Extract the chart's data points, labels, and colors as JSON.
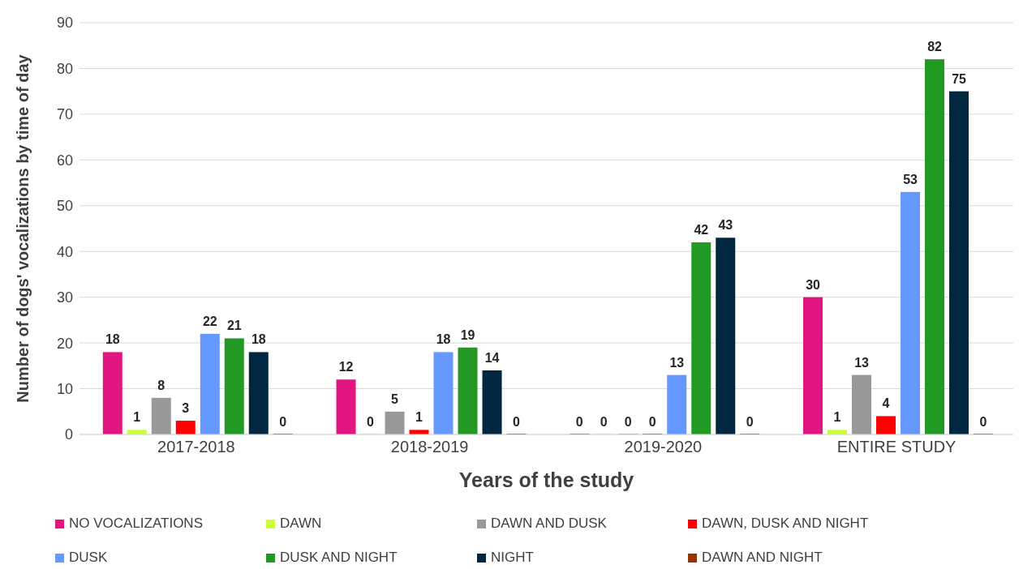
{
  "chart_data": {
    "type": "bar",
    "xlabel": "Years of the study",
    "ylabel": "Number of dogs' vocalizations by time of day",
    "categories": [
      "2017-2018",
      "2018-2019",
      "2019-2020",
      "ENTIRE STUDY"
    ],
    "series": [
      {
        "name": "NO VOCALIZATIONS",
        "color": "#e0157f",
        "values": [
          18,
          12,
          0,
          30
        ]
      },
      {
        "name": "DAWN",
        "color": "#ccff33",
        "values": [
          1,
          0,
          0,
          1
        ]
      },
      {
        "name": "DAWN AND DUSK",
        "color": "#999999",
        "values": [
          8,
          5,
          0,
          13
        ]
      },
      {
        "name": "DAWN, DUSK AND NIGHT",
        "color": "#ff0000",
        "values": [
          3,
          1,
          0,
          4
        ]
      },
      {
        "name": "DUSK",
        "color": "#6699ff",
        "values": [
          22,
          18,
          13,
          53
        ]
      },
      {
        "name": "DUSK AND NIGHT",
        "color": "#229922",
        "values": [
          21,
          19,
          42,
          82
        ]
      },
      {
        "name": "NIGHT",
        "color": "#002640",
        "values": [
          18,
          14,
          43,
          75
        ]
      },
      {
        "name": "DAWN AND NIGHT",
        "color": "#993300",
        "values": [
          0,
          0,
          0,
          0
        ]
      }
    ],
    "ylim": [
      0,
      90
    ],
    "yticks": [
      0,
      10,
      20,
      30,
      40,
      50,
      60,
      70,
      80,
      90
    ],
    "grid": "y",
    "legend": "bottom",
    "data_labels": true
  }
}
